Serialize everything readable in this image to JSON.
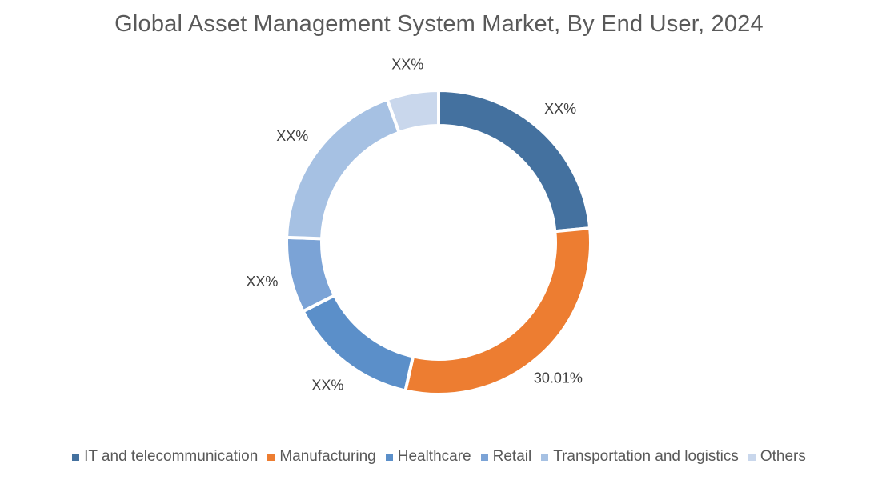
{
  "chart_data": {
    "type": "donut",
    "title": "Global Asset Management System Market, By End User, 2024",
    "categories": [
      "IT and telecommunication",
      "Manufacturing",
      "Healthcare",
      "Retail",
      "Transportation and logistics",
      "Others"
    ],
    "values": [
      23.5,
      30.01,
      14.0,
      8.0,
      19.0,
      5.49
    ],
    "labels": [
      "XX%",
      "30.01%",
      "XX%",
      "XX%",
      "XX%",
      "XX%"
    ],
    "colors": [
      "#44719f",
      "#ed7d31",
      "#5b8fc9",
      "#7ba3d6",
      "#a6c1e3",
      "#c9d7ec"
    ],
    "legend_position": "bottom"
  }
}
